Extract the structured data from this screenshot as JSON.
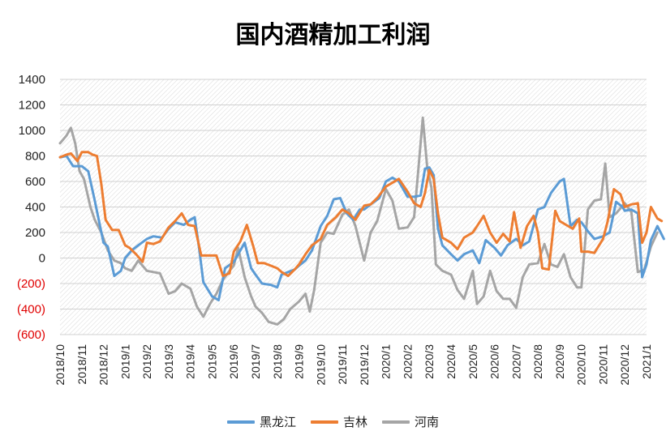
{
  "chart_data": {
    "type": "line",
    "title": "国内酒精加工利润",
    "xlabel": "",
    "ylabel": "",
    "ylim": [
      -600,
      1400
    ],
    "y_ticks": [
      {
        "value": 1400,
        "label": "1400"
      },
      {
        "value": 1200,
        "label": "1200"
      },
      {
        "value": 1000,
        "label": "1000"
      },
      {
        "value": 800,
        "label": "800"
      },
      {
        "value": 600,
        "label": "600"
      },
      {
        "value": 400,
        "label": "400"
      },
      {
        "value": 200,
        "label": "200"
      },
      {
        "value": 0,
        "label": "0"
      },
      {
        "value": -200,
        "label": "(200)"
      },
      {
        "value": -400,
        "label": "(400)"
      },
      {
        "value": -600,
        "label": "(600)"
      }
    ],
    "x_ticks": [
      "2018/10",
      "2018/11",
      "2018/12",
      "2019/1",
      "2019/2",
      "2019/3",
      "2019/4",
      "2019/5",
      "2019/6",
      "2019/7",
      "2019/8",
      "2019/9",
      "2019/10",
      "2019/11",
      "2019/12",
      "2020/1",
      "2020/2",
      "2020/3",
      "2020/4",
      "2020/5",
      "2020/6",
      "2020/7",
      "2020/8",
      "2020/9",
      "2020/10",
      "2020/11",
      "2020/12",
      "2021/1"
    ],
    "x_range": [
      0,
      27
    ],
    "x_unit": "months since 2018/10",
    "grid": "horizontal",
    "legend_position": "bottom",
    "series": [
      {
        "name": "黑龙江",
        "color": "#5B9BD5",
        "points": [
          [
            0,
            790
          ],
          [
            0.3,
            800
          ],
          [
            0.6,
            720
          ],
          [
            1,
            720
          ],
          [
            1.3,
            680
          ],
          [
            1.6,
            450
          ],
          [
            2,
            120
          ],
          [
            2.2,
            90
          ],
          [
            2.5,
            -140
          ],
          [
            2.8,
            -100
          ],
          [
            3,
            0
          ],
          [
            3.3,
            60
          ],
          [
            3.6,
            100
          ],
          [
            4,
            150
          ],
          [
            4.3,
            170
          ],
          [
            4.7,
            160
          ],
          [
            5,
            230
          ],
          [
            5.3,
            280
          ],
          [
            5.7,
            260
          ],
          [
            6,
            300
          ],
          [
            6.2,
            320
          ],
          [
            6.4,
            80
          ],
          [
            6.6,
            -190
          ],
          [
            7,
            -300
          ],
          [
            7.3,
            -330
          ],
          [
            7.6,
            -80
          ],
          [
            8,
            -30
          ],
          [
            8.3,
            60
          ],
          [
            8.5,
            120
          ],
          [
            8.8,
            -80
          ],
          [
            9,
            -130
          ],
          [
            9.3,
            -200
          ],
          [
            9.7,
            -210
          ],
          [
            10,
            -230
          ],
          [
            10.2,
            -130
          ],
          [
            10.5,
            -110
          ],
          [
            10.8,
            -90
          ],
          [
            11,
            -60
          ],
          [
            11.3,
            -20
          ],
          [
            11.6,
            60
          ],
          [
            12,
            250
          ],
          [
            12.3,
            330
          ],
          [
            12.6,
            460
          ],
          [
            12.9,
            470
          ],
          [
            13.2,
            350
          ],
          [
            13.5,
            300
          ],
          [
            13.8,
            380
          ],
          [
            14,
            380
          ],
          [
            14.3,
            420
          ],
          [
            14.7,
            470
          ],
          [
            15,
            600
          ],
          [
            15.3,
            630
          ],
          [
            15.6,
            600
          ],
          [
            16,
            480
          ],
          [
            16.3,
            480
          ],
          [
            16.6,
            490
          ],
          [
            16.8,
            700
          ],
          [
            17,
            710
          ],
          [
            17.2,
            650
          ],
          [
            17.4,
            230
          ],
          [
            17.6,
            100
          ],
          [
            18,
            30
          ],
          [
            18.3,
            -20
          ],
          [
            18.6,
            30
          ],
          [
            19,
            60
          ],
          [
            19.3,
            -40
          ],
          [
            19.6,
            140
          ],
          [
            20,
            80
          ],
          [
            20.3,
            20
          ],
          [
            20.6,
            100
          ],
          [
            21,
            150
          ],
          [
            21.3,
            100
          ],
          [
            21.6,
            130
          ],
          [
            22,
            380
          ],
          [
            22.3,
            400
          ],
          [
            22.6,
            510
          ],
          [
            23,
            600
          ],
          [
            23.2,
            620
          ],
          [
            23.5,
            250
          ],
          [
            23.8,
            300
          ],
          [
            24,
            280
          ],
          [
            24.3,
            210
          ],
          [
            24.6,
            150
          ],
          [
            25,
            170
          ],
          [
            25.3,
            200
          ],
          [
            25.6,
            440
          ],
          [
            25.9,
            400
          ],
          [
            26,
            370
          ],
          [
            26.3,
            380
          ],
          [
            26.6,
            350
          ],
          [
            26.8,
            -150
          ],
          [
            27,
            -50
          ],
          [
            27.2,
            140
          ],
          [
            27.5,
            250
          ],
          [
            27.8,
            150
          ]
        ]
      },
      {
        "name": "吉林",
        "color": "#ED7D31",
        "points": [
          [
            0,
            790
          ],
          [
            0.3,
            810
          ],
          [
            0.5,
            820
          ],
          [
            0.8,
            760
          ],
          [
            1,
            830
          ],
          [
            1.3,
            830
          ],
          [
            1.5,
            810
          ],
          [
            1.7,
            800
          ],
          [
            1.9,
            580
          ],
          [
            2.1,
            300
          ],
          [
            2.4,
            220
          ],
          [
            2.7,
            220
          ],
          [
            3,
            100
          ],
          [
            3.2,
            80
          ],
          [
            3.5,
            30
          ],
          [
            3.8,
            -30
          ],
          [
            4,
            120
          ],
          [
            4.3,
            110
          ],
          [
            4.6,
            130
          ],
          [
            5,
            240
          ],
          [
            5.3,
            290
          ],
          [
            5.6,
            350
          ],
          [
            5.9,
            260
          ],
          [
            6.2,
            250
          ],
          [
            6.5,
            20
          ],
          [
            6.9,
            20
          ],
          [
            7.2,
            20
          ],
          [
            7.5,
            -140
          ],
          [
            7.8,
            -120
          ],
          [
            8,
            50
          ],
          [
            8.3,
            130
          ],
          [
            8.6,
            260
          ],
          [
            8.9,
            90
          ],
          [
            9.1,
            -40
          ],
          [
            9.4,
            -40
          ],
          [
            9.7,
            -60
          ],
          [
            10,
            -80
          ],
          [
            10.2,
            -110
          ],
          [
            10.5,
            -140
          ],
          [
            10.8,
            -90
          ],
          [
            11,
            -50
          ],
          [
            11.3,
            30
          ],
          [
            11.6,
            100
          ],
          [
            12,
            150
          ],
          [
            12.3,
            260
          ],
          [
            12.7,
            320
          ],
          [
            13,
            380
          ],
          [
            13.3,
            350
          ],
          [
            13.6,
            300
          ],
          [
            14,
            410
          ],
          [
            14.3,
            420
          ],
          [
            14.6,
            470
          ],
          [
            15,
            560
          ],
          [
            15.3,
            590
          ],
          [
            15.6,
            620
          ],
          [
            16,
            520
          ],
          [
            16.3,
            430
          ],
          [
            16.6,
            400
          ],
          [
            16.8,
            510
          ],
          [
            17,
            690
          ],
          [
            17.2,
            620
          ],
          [
            17.4,
            350
          ],
          [
            17.6,
            160
          ],
          [
            18,
            120
          ],
          [
            18.3,
            70
          ],
          [
            18.6,
            160
          ],
          [
            19,
            200
          ],
          [
            19.2,
            250
          ],
          [
            19.5,
            330
          ],
          [
            19.8,
            200
          ],
          [
            20.1,
            120
          ],
          [
            20.4,
            190
          ],
          [
            20.7,
            130
          ],
          [
            20.9,
            360
          ],
          [
            21.2,
            80
          ],
          [
            21.5,
            250
          ],
          [
            21.8,
            330
          ],
          [
            22,
            200
          ],
          [
            22.2,
            -80
          ],
          [
            22.5,
            -90
          ],
          [
            22.8,
            370
          ],
          [
            23,
            290
          ],
          [
            23.3,
            260
          ],
          [
            23.6,
            230
          ],
          [
            23.9,
            310
          ],
          [
            24,
            50
          ],
          [
            24.3,
            50
          ],
          [
            24.6,
            40
          ],
          [
            25,
            150
          ],
          [
            25.2,
            280
          ],
          [
            25.5,
            540
          ],
          [
            25.8,
            500
          ],
          [
            26,
            400
          ],
          [
            26.3,
            420
          ],
          [
            26.6,
            430
          ],
          [
            26.8,
            120
          ],
          [
            27,
            200
          ],
          [
            27.2,
            400
          ],
          [
            27.5,
            310
          ],
          [
            27.7,
            290
          ]
        ]
      },
      {
        "name": "河南",
        "color": "#A5A5A5",
        "points": [
          [
            0,
            900
          ],
          [
            0.3,
            960
          ],
          [
            0.5,
            1020
          ],
          [
            0.7,
            900
          ],
          [
            0.9,
            680
          ],
          [
            1.1,
            620
          ],
          [
            1.4,
            400
          ],
          [
            1.6,
            300
          ],
          [
            1.9,
            200
          ],
          [
            2.2,
            60
          ],
          [
            2.5,
            -20
          ],
          [
            2.8,
            -40
          ],
          [
            3,
            -80
          ],
          [
            3.3,
            -100
          ],
          [
            3.6,
            -20
          ],
          [
            4,
            -100
          ],
          [
            4.3,
            -110
          ],
          [
            4.6,
            -120
          ],
          [
            5,
            -280
          ],
          [
            5.3,
            -260
          ],
          [
            5.6,
            -200
          ],
          [
            6,
            -240
          ],
          [
            6.3,
            -380
          ],
          [
            6.6,
            -460
          ],
          [
            6.9,
            -360
          ],
          [
            7.2,
            -280
          ],
          [
            7.5,
            -170
          ],
          [
            7.8,
            -100
          ],
          [
            8,
            -60
          ],
          [
            8.2,
            80
          ],
          [
            8.5,
            -150
          ],
          [
            8.8,
            -300
          ],
          [
            9,
            -380
          ],
          [
            9.3,
            -430
          ],
          [
            9.6,
            -500
          ],
          [
            10,
            -520
          ],
          [
            10.3,
            -480
          ],
          [
            10.6,
            -400
          ],
          [
            11,
            -340
          ],
          [
            11.3,
            -280
          ],
          [
            11.5,
            -420
          ],
          [
            11.7,
            -250
          ],
          [
            12,
            120
          ],
          [
            12.3,
            200
          ],
          [
            12.6,
            190
          ],
          [
            13,
            340
          ],
          [
            13.3,
            380
          ],
          [
            13.6,
            250
          ],
          [
            14,
            -20
          ],
          [
            14.3,
            200
          ],
          [
            14.6,
            290
          ],
          [
            15,
            540
          ],
          [
            15.3,
            450
          ],
          [
            15.6,
            230
          ],
          [
            16,
            240
          ],
          [
            16.3,
            320
          ],
          [
            16.5,
            700
          ],
          [
            16.7,
            1100
          ],
          [
            16.9,
            720
          ],
          [
            17.1,
            550
          ],
          [
            17.3,
            -50
          ],
          [
            17.6,
            -100
          ],
          [
            18,
            -130
          ],
          [
            18.3,
            -250
          ],
          [
            18.6,
            -320
          ],
          [
            19,
            -100
          ],
          [
            19.2,
            -360
          ],
          [
            19.5,
            -300
          ],
          [
            19.8,
            -100
          ],
          [
            20.1,
            -260
          ],
          [
            20.4,
            -320
          ],
          [
            20.7,
            -320
          ],
          [
            21,
            -390
          ],
          [
            21.3,
            -150
          ],
          [
            21.6,
            -50
          ],
          [
            22,
            -40
          ],
          [
            22.3,
            110
          ],
          [
            22.6,
            -50
          ],
          [
            22.9,
            -70
          ],
          [
            23.2,
            30
          ],
          [
            23.5,
            -150
          ],
          [
            23.8,
            -230
          ],
          [
            24,
            -230
          ],
          [
            24.3,
            380
          ],
          [
            24.6,
            450
          ],
          [
            24.9,
            460
          ],
          [
            25.1,
            740
          ],
          [
            25.3,
            320
          ],
          [
            25.6,
            350
          ],
          [
            26,
            430
          ],
          [
            26.3,
            360
          ],
          [
            26.6,
            -110
          ],
          [
            26.9,
            -90
          ],
          [
            27.2,
            90
          ],
          [
            27.5,
            200
          ]
        ]
      }
    ]
  }
}
